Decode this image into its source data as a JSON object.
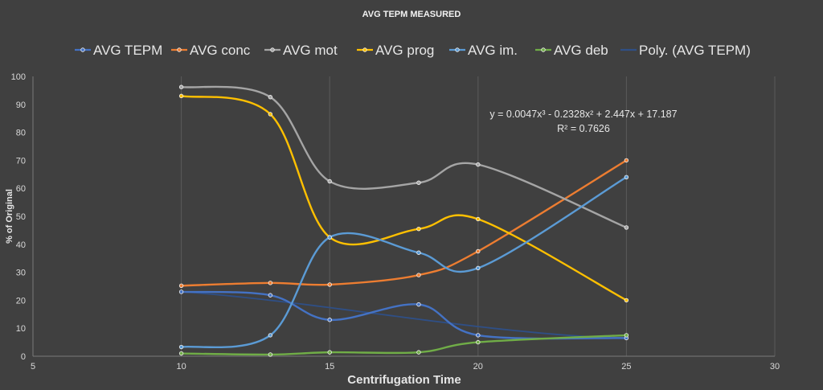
{
  "chart_data": {
    "type": "line",
    "title": "AVG TEPM MEASURED",
    "xlabel": "Centrifugation Time",
    "ylabel": "% of Original",
    "xlim": [
      5,
      30
    ],
    "ylim": [
      0,
      100
    ],
    "x_ticks": [
      5,
      10,
      15,
      20,
      25,
      30
    ],
    "y_ticks": [
      0,
      10,
      20,
      30,
      40,
      50,
      60,
      70,
      80,
      90,
      100
    ],
    "grid": "vertical",
    "legend_position": "top",
    "smoothed": true,
    "series": [
      {
        "name": "AVG TEPM",
        "color": "#4472c4",
        "points": [
          [
            10,
            23
          ],
          [
            13,
            21.8
          ],
          [
            15,
            13
          ],
          [
            18,
            18.5
          ],
          [
            20,
            7.5
          ],
          [
            25,
            6.5
          ]
        ]
      },
      {
        "name": "AVG conc",
        "color": "#ed7d31",
        "points": [
          [
            10,
            25.2
          ],
          [
            13,
            26.2
          ],
          [
            15,
            25.6
          ],
          [
            18,
            29
          ],
          [
            20,
            37.5
          ],
          [
            25,
            70
          ]
        ]
      },
      {
        "name": "AVG mot",
        "color": "#a5a5a5",
        "points": [
          [
            10,
            96.2
          ],
          [
            13,
            92.6
          ],
          [
            15,
            62.5
          ],
          [
            18,
            62
          ],
          [
            20,
            68.5
          ],
          [
            25,
            46
          ]
        ]
      },
      {
        "name": "AVG prog",
        "color": "#ffc000",
        "points": [
          [
            10,
            93
          ],
          [
            13,
            86.5
          ],
          [
            15,
            42.5
          ],
          [
            18,
            45.5
          ],
          [
            20,
            49
          ],
          [
            25,
            20
          ]
        ]
      },
      {
        "name": "AVG im.",
        "color": "#5b9bd5",
        "points": [
          [
            10,
            3.3
          ],
          [
            13,
            7.5
          ],
          [
            15,
            42.5
          ],
          [
            18,
            37
          ],
          [
            20,
            31.5
          ],
          [
            25,
            64
          ]
        ]
      },
      {
        "name": "AVG deb",
        "color": "#70ad47",
        "points": [
          [
            10,
            1
          ],
          [
            13,
            0.6
          ],
          [
            15,
            1.4
          ],
          [
            18,
            1.4
          ],
          [
            20,
            5
          ],
          [
            25,
            7.5
          ]
        ]
      }
    ],
    "trendline": {
      "name": "Poly. (AVG TEPM)",
      "color": "#2f4f86",
      "type": "polynomial",
      "order": 3,
      "coefficients": [
        0.0047,
        -0.2328,
        2.447,
        17.187
      ],
      "equation_text": "y = 0.0047x³ - 0.2328x² + 2.447x + 17.187",
      "r2_text": "R² = 0.7626"
    }
  }
}
